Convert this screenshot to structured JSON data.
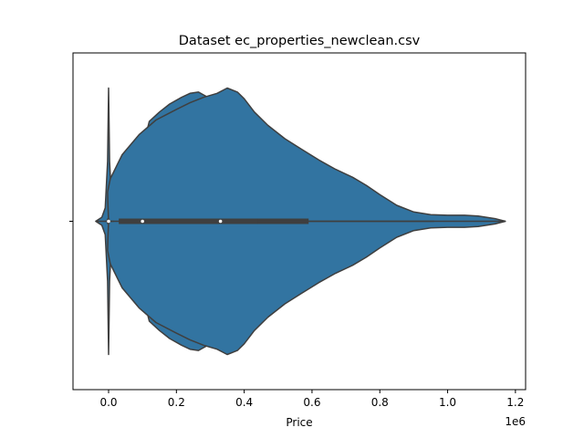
{
  "chart_data": {
    "type": "violin",
    "title": "Dataset ec_properties_newclean.csv",
    "xlabel": "Price",
    "x_offset_label": "1e6",
    "ylabel": "",
    "xlim": [
      -105000,
      1230000
    ],
    "xticks": [
      0,
      200000,
      400000,
      600000,
      800000,
      1000000,
      1200000
    ],
    "xtick_labels": [
      "0.0",
      "0.2",
      "0.4",
      "0.6",
      "0.8",
      "1.0",
      "1.2"
    ],
    "yticks": [
      ""
    ],
    "grid": false,
    "legend": null,
    "fill_color": "#3274a1",
    "edge_color": "#3f3f3f",
    "violins": [
      {
        "label": "",
        "density_outline": [
          [
            -38000,
            0.0
          ],
          [
            -20000,
            0.03
          ],
          [
            -10000,
            0.1
          ],
          [
            -3000,
            0.45
          ],
          [
            0,
            1.0
          ],
          [
            3000,
            0.45
          ],
          [
            10000,
            0.1
          ],
          [
            20000,
            0.03
          ],
          [
            30000,
            0.0
          ]
        ],
        "quartiles": [
          -5000,
          0,
          3000
        ],
        "whisker": [
          -12000,
          15000
        ]
      },
      {
        "label": "",
        "density_outline": [
          [
            80000,
            0.0
          ],
          [
            82000,
            0.06
          ],
          [
            85000,
            0.15
          ],
          [
            92000,
            0.35
          ],
          [
            100000,
            0.55
          ],
          [
            120000,
            0.75
          ],
          [
            150000,
            0.82
          ],
          [
            180000,
            0.88
          ],
          [
            215000,
            0.93
          ],
          [
            240000,
            0.96
          ],
          [
            265000,
            0.97
          ],
          [
            300000,
            0.92
          ],
          [
            330000,
            0.82
          ],
          [
            360000,
            0.71
          ],
          [
            400000,
            0.6
          ],
          [
            450000,
            0.49
          ],
          [
            500000,
            0.4
          ],
          [
            550000,
            0.34
          ],
          [
            600000,
            0.28
          ],
          [
            650000,
            0.24
          ],
          [
            700000,
            0.21
          ],
          [
            750000,
            0.18
          ],
          [
            800000,
            0.14
          ],
          [
            860000,
            0.07
          ],
          [
            900000,
            0.05
          ],
          [
            950000,
            0.04
          ],
          [
            1000000,
            0.04
          ],
          [
            1050000,
            0.025
          ],
          [
            1100000,
            0.02
          ],
          [
            1140000,
            0.015
          ],
          [
            1170000,
            0.0
          ]
        ],
        "quartiles": [
          185000,
          330000,
          590000
        ],
        "whisker": [
          78000,
          960000
        ]
      },
      {
        "label": "",
        "density_outline": [
          [
            0,
            0.0
          ],
          [
            -2000,
            0.12
          ],
          [
            -3000,
            0.22
          ],
          [
            5000,
            0.32
          ],
          [
            40000,
            0.5
          ],
          [
            90000,
            0.65
          ],
          [
            140000,
            0.76
          ],
          [
            200000,
            0.84
          ],
          [
            240000,
            0.89
          ],
          [
            280000,
            0.93
          ],
          [
            320000,
            0.96
          ],
          [
            350000,
            1.0
          ],
          [
            380000,
            0.97
          ],
          [
            400000,
            0.92
          ],
          [
            430000,
            0.82
          ],
          [
            470000,
            0.72
          ],
          [
            520000,
            0.62
          ],
          [
            570000,
            0.54
          ],
          [
            620000,
            0.46
          ],
          [
            670000,
            0.39
          ],
          [
            720000,
            0.33
          ],
          [
            760000,
            0.27
          ],
          [
            800000,
            0.2
          ],
          [
            850000,
            0.12
          ],
          [
            900000,
            0.07
          ],
          [
            950000,
            0.05
          ],
          [
            1000000,
            0.045
          ],
          [
            1050000,
            0.045
          ],
          [
            1090000,
            0.04
          ],
          [
            1140000,
            0.02
          ],
          [
            1170000,
            0.0
          ]
        ],
        "quartiles": [
          30000,
          100000,
          440000
        ],
        "whisker": [
          -38000,
          1170000
        ]
      }
    ]
  }
}
